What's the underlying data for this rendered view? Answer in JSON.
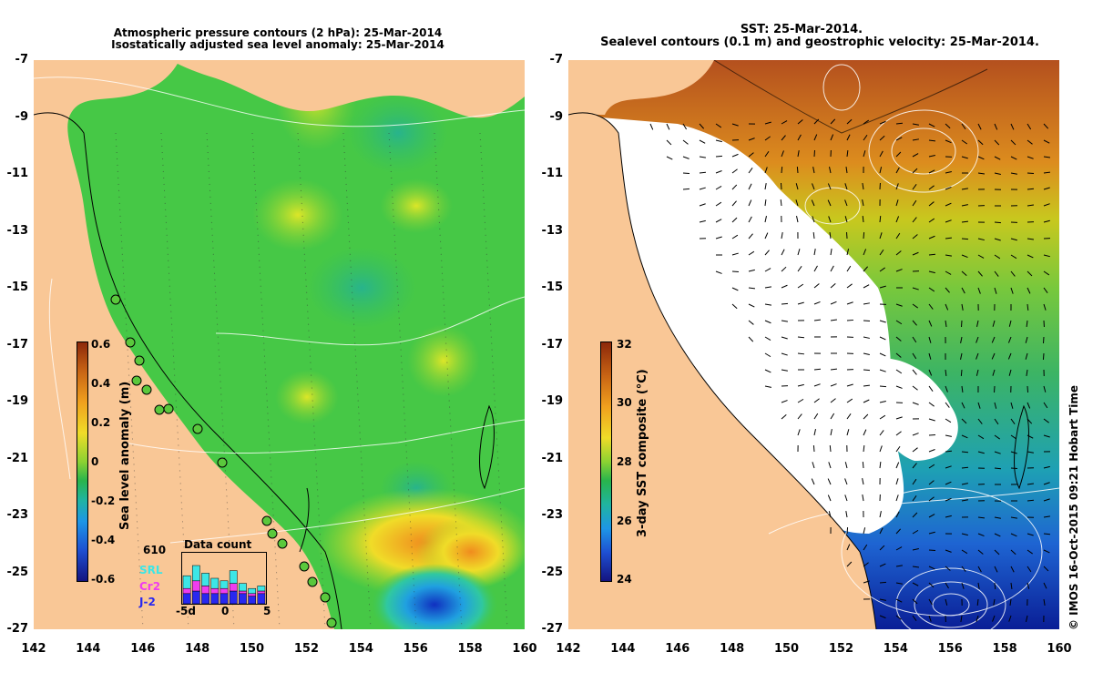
{
  "left_panel": {
    "title_line1": "Atmospheric pressure contours (2 hPa): 25-Mar-2014",
    "title_line2": "Isostatically adjusted sea level anomaly: 25-Mar-2014",
    "colorbar": {
      "title": "Sea level anomaly (m)",
      "ticks": [
        "0.6",
        "0.4",
        "0.2",
        "0",
        "-0.2",
        "-0.4",
        "-0.6"
      ]
    },
    "data_count": {
      "title": "Data count",
      "max_label": "610",
      "series": [
        "SRL",
        "Cr2",
        "J-2"
      ],
      "x_ticks": [
        "-5d",
        "0",
        "5"
      ],
      "counts": [
        {
          "SRL": 0.55,
          "Cr2": 0.3,
          "J-2": 0.2
        },
        {
          "SRL": 0.75,
          "Cr2": 0.45,
          "J-2": 0.25
        },
        {
          "SRL": 0.6,
          "Cr2": 0.35,
          "J-2": 0.2
        },
        {
          "SRL": 0.5,
          "Cr2": 0.3,
          "J-2": 0.2
        },
        {
          "SRL": 0.45,
          "Cr2": 0.3,
          "J-2": 0.2
        },
        {
          "SRL": 0.65,
          "Cr2": 0.4,
          "J-2": 0.25
        },
        {
          "SRL": 0.4,
          "Cr2": 0.25,
          "J-2": 0.2
        },
        {
          "SRL": 0.3,
          "Cr2": 0.2,
          "J-2": 0.15
        },
        {
          "SRL": 0.35,
          "Cr2": 0.25,
          "J-2": 0.2
        }
      ]
    }
  },
  "right_panel": {
    "title_line1": "SST: 25-Mar-2014.",
    "title_line2": "Sealevel contours (0.1 m) and geostrophic velocity: 25-Mar-2014.",
    "colorbar": {
      "title": "3-day SST composite (°C)",
      "ticks": [
        "32",
        "30",
        "28",
        "26",
        "24"
      ]
    }
  },
  "axes": {
    "lat_ticks": [
      "-7",
      "-9",
      "-11",
      "-13",
      "-15",
      "-17",
      "-19",
      "-21",
      "-23",
      "-25",
      "-27"
    ],
    "lon_ticks": [
      "142",
      "144",
      "146",
      "148",
      "150",
      "152",
      "154",
      "156",
      "158",
      "160"
    ],
    "lat_range": [
      -27,
      -7
    ],
    "lon_range": [
      142,
      160
    ]
  },
  "credit": "© IMOS 16-Oct-2015 09:21 Hobart Time",
  "colors": {
    "land": "#f9c796",
    "sla_zero": "#3cc83c",
    "sst_warm": "#c8641e",
    "sst_cold": "#1450c8"
  }
}
